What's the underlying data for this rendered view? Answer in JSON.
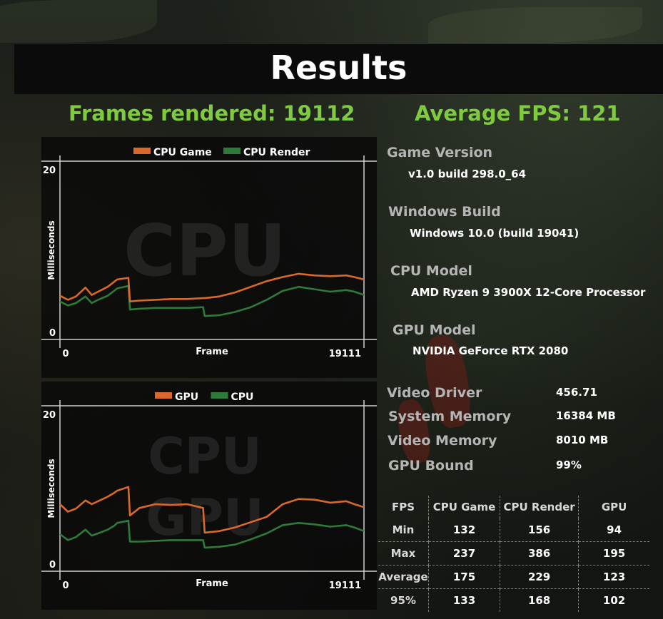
{
  "title": "Results",
  "frames_rendered": "Frames rendered: 19112",
  "average_fps": "Average FPS: 121",
  "system_info": [
    {
      "label": "Game Version",
      "value": "v1.0 build 298.0_64"
    },
    {
      "label": "Windows Build",
      "value": "Windows 10.0 (build 19041)"
    },
    {
      "label": "CPU Model",
      "value": "AMD Ryzen 9 3900X 12-Core Processor"
    },
    {
      "label": "GPU Model",
      "value": "NVIDIA GeForce RTX 2080"
    }
  ],
  "hardware": [
    {
      "label": "Video Driver",
      "value": "456.71"
    },
    {
      "label": "System Memory",
      "value": "16384 MB"
    },
    {
      "label": "Video Memory",
      "value": "8010 MB"
    },
    {
      "label": "GPU Bound",
      "value": "99%"
    }
  ],
  "stats_table": {
    "headers": [
      "FPS",
      "CPU Game",
      "CPU Render",
      "GPU"
    ],
    "rows": [
      [
        "Min",
        "132",
        "156",
        "94"
      ],
      [
        "Max",
        "237",
        "386",
        "195"
      ],
      [
        "Average",
        "175",
        "229",
        "123"
      ],
      [
        "95%",
        "133",
        "168",
        "102"
      ]
    ]
  },
  "colors": {
    "orange": "#d8692a",
    "green": "#2f7a3a",
    "headline": "#7fcb3f"
  },
  "chart_data": [
    {
      "type": "line",
      "watermark": [
        "CPU"
      ],
      "xlabel": "Frame",
      "ylabel": "Milliseconds",
      "xlim": [
        0,
        19111
      ],
      "ylim": [
        0,
        20
      ],
      "x_ticks": [
        "0",
        "19111"
      ],
      "y_ticks": [
        "20",
        "0"
      ],
      "legend": "top",
      "x": [
        0,
        500,
        1000,
        1600,
        2000,
        2400,
        3000,
        3400,
        3600,
        4300,
        4400,
        5000,
        6000,
        7000,
        8000,
        9000,
        9100,
        10000,
        11000,
        12000,
        13000,
        14000,
        15000,
        16000,
        17000,
        18000,
        18500,
        19111
      ],
      "series": [
        {
          "name": "CPU Game",
          "color": "#d8692a",
          "values": [
            4.5,
            4.0,
            4.4,
            5.5,
            4.6,
            5.0,
            5.6,
            6.2,
            6.5,
            6.7,
            3.8,
            3.9,
            4.0,
            4.1,
            4.1,
            4.2,
            4.2,
            4.4,
            4.9,
            5.6,
            6.3,
            6.8,
            7.2,
            7.0,
            6.9,
            7.0,
            6.8,
            6.5
          ]
        },
        {
          "name": "CPU Render",
          "color": "#2f7a3a",
          "values": [
            3.8,
            3.3,
            3.6,
            4.4,
            3.6,
            4.0,
            4.5,
            5.1,
            5.4,
            5.7,
            2.8,
            2.9,
            3.0,
            3.0,
            3.0,
            3.1,
            2.0,
            2.1,
            2.5,
            3.1,
            4.0,
            5.1,
            5.6,
            5.3,
            5.0,
            5.2,
            5.0,
            4.6
          ]
        }
      ]
    },
    {
      "type": "line",
      "watermark": [
        "CPU",
        "GPU"
      ],
      "xlabel": "Frame",
      "ylabel": "Milliseconds",
      "xlim": [
        0,
        19111
      ],
      "ylim": [
        0,
        20
      ],
      "x_ticks": [
        "0",
        "19111"
      ],
      "y_ticks": [
        "20",
        "0"
      ],
      "legend": "top",
      "x": [
        0,
        500,
        1000,
        1600,
        2000,
        2400,
        3000,
        3400,
        3600,
        4300,
        4400,
        5000,
        6000,
        7000,
        8000,
        9000,
        9100,
        10000,
        11000,
        12000,
        13000,
        14000,
        15000,
        16000,
        17000,
        18000,
        18500,
        19111
      ],
      "series": [
        {
          "name": "GPU",
          "color": "#d8692a",
          "values": [
            8.0,
            7.0,
            7.4,
            8.5,
            8.0,
            8.4,
            9.0,
            9.5,
            9.8,
            10.3,
            6.5,
            7.5,
            8.0,
            7.9,
            8.0,
            7.5,
            4.2,
            4.4,
            4.9,
            5.6,
            6.3,
            8.0,
            8.7,
            8.6,
            8.2,
            8.4,
            8.0,
            7.6
          ]
        },
        {
          "name": "CPU",
          "color": "#2f7a3a",
          "values": [
            4.0,
            3.2,
            3.6,
            4.6,
            3.8,
            4.1,
            4.6,
            5.1,
            5.5,
            5.8,
            3.0,
            3.0,
            3.1,
            3.2,
            3.2,
            3.2,
            2.2,
            2.3,
            2.6,
            3.3,
            4.1,
            5.2,
            5.5,
            5.3,
            5.0,
            5.2,
            4.9,
            4.4
          ]
        }
      ]
    }
  ]
}
